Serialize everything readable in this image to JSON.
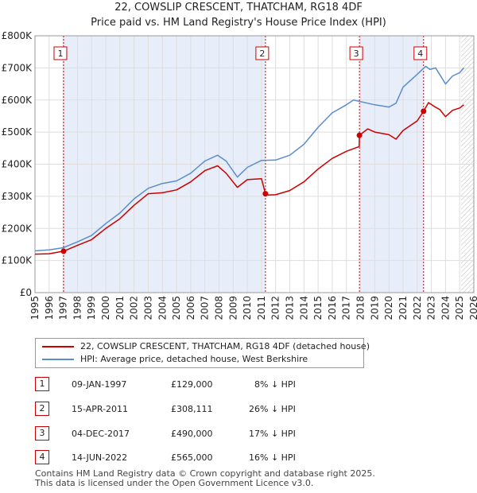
{
  "title": {
    "line1": "22, COWSLIP CRESCENT, THATCHAM, RG18 4DF",
    "line2": "Price paid vs. HM Land Registry's House Price Index (HPI)"
  },
  "colors": {
    "property": "#cc0000",
    "hpi": "#5b8ccc",
    "shade": "#e8eef9",
    "marker": "#cc0000"
  },
  "chart_data": {
    "type": "line",
    "title": "Price paid vs. HM Land Registry's House Price Index (HPI)",
    "xlabel": "",
    "ylabel": "",
    "xlim": [
      1995,
      2026
    ],
    "ylim": [
      0,
      800000
    ],
    "y_ticks": [
      0,
      100000,
      200000,
      300000,
      400000,
      500000,
      600000,
      700000,
      800000
    ],
    "y_tick_labels": [
      "£0",
      "£100K",
      "£200K",
      "£300K",
      "£400K",
      "£500K",
      "£600K",
      "£700K",
      "£800K"
    ],
    "x_ticks": [
      1995,
      1996,
      1997,
      1998,
      1999,
      2000,
      2001,
      2002,
      2003,
      2004,
      2005,
      2006,
      2007,
      2008,
      2009,
      2010,
      2011,
      2012,
      2013,
      2014,
      2015,
      2016,
      2017,
      2018,
      2019,
      2020,
      2021,
      2022,
      2023,
      2024,
      2025,
      2026
    ],
    "grid": true,
    "forecast_start": 2025.1,
    "series": [
      {
        "name": "22, COWSLIP CRESCENT, THATCHAM, RG18 4DF (detached house)",
        "x": [
          1995.0,
          1996.0,
          1997.02,
          1998.0,
          1999.0,
          2000.0,
          2001.0,
          2002.0,
          2003.0,
          2004.0,
          2005.0,
          2006.0,
          2007.0,
          2007.9,
          2008.5,
          2009.3,
          2010.0,
          2011.0,
          2011.28,
          2011.5,
          2012.0,
          2013.0,
          2014.0,
          2015.0,
          2016.0,
          2017.0,
          2017.9,
          2017.92,
          2018.5,
          2019.0,
          2020.0,
          2020.5,
          2021.0,
          2022.0,
          2022.45,
          2022.8,
          2023.2,
          2023.6,
          2024.0,
          2024.5,
          2025.0,
          2025.3
        ],
        "values": [
          120000,
          121000,
          129000,
          147000,
          165000,
          200000,
          230000,
          272000,
          308000,
          311000,
          320000,
          345000,
          380000,
          395000,
          372000,
          328000,
          352000,
          355000,
          308111,
          304000,
          305000,
          318000,
          345000,
          385000,
          418000,
          440000,
          455000,
          490000,
          510000,
          500000,
          492000,
          478000,
          505000,
          535000,
          565000,
          592000,
          580000,
          570000,
          548000,
          568000,
          575000,
          585000
        ]
      },
      {
        "name": "HPI: Average price, detached house, West Berkshire",
        "x": [
          1995.0,
          1996.0,
          1997.0,
          1998.0,
          1999.0,
          2000.0,
          2001.0,
          2002.0,
          2003.0,
          2004.0,
          2005.0,
          2006.0,
          2007.0,
          2007.9,
          2008.5,
          2009.3,
          2010.0,
          2011.0,
          2012.0,
          2013.0,
          2014.0,
          2015.0,
          2016.0,
          2017.0,
          2017.5,
          2018.0,
          2019.0,
          2020.0,
          2020.5,
          2021.0,
          2022.0,
          2022.6,
          2022.9,
          2023.3,
          2023.7,
          2024.0,
          2024.5,
          2025.0,
          2025.3
        ],
        "values": [
          130000,
          133000,
          140000,
          158000,
          178000,
          215000,
          248000,
          292000,
          325000,
          340000,
          348000,
          372000,
          410000,
          428000,
          410000,
          360000,
          390000,
          412000,
          413000,
          428000,
          462000,
          515000,
          560000,
          585000,
          600000,
          595000,
          585000,
          578000,
          590000,
          640000,
          680000,
          705000,
          695000,
          700000,
          672000,
          650000,
          675000,
          685000,
          700000
        ]
      }
    ],
    "sales": [
      {
        "n": "1",
        "x": 1997.02,
        "price": 129000
      },
      {
        "n": "2",
        "x": 2011.28,
        "price": 308111
      },
      {
        "n": "3",
        "x": 2017.92,
        "price": 490000
      },
      {
        "n": "4",
        "x": 2022.45,
        "price": 565000
      }
    ]
  },
  "legend": {
    "property": "22, COWSLIP CRESCENT, THATCHAM, RG18 4DF (detached house)",
    "hpi": "HPI: Average price, detached house, West Berkshire"
  },
  "sales_table": [
    {
      "n": "1",
      "date": "09-JAN-1997",
      "price": "£129,000",
      "hpi": "8% ↓ HPI"
    },
    {
      "n": "2",
      "date": "15-APR-2011",
      "price": "£308,111",
      "hpi": "26% ↓ HPI"
    },
    {
      "n": "3",
      "date": "04-DEC-2017",
      "price": "£490,000",
      "hpi": "17% ↓ HPI"
    },
    {
      "n": "4",
      "date": "14-JUN-2022",
      "price": "£565,000",
      "hpi": "16% ↓ HPI"
    }
  ],
  "footer": {
    "line1": "Contains HM Land Registry data © Crown copyright and database right 2025.",
    "line2": "This data is licensed under the Open Government Licence v3.0."
  }
}
